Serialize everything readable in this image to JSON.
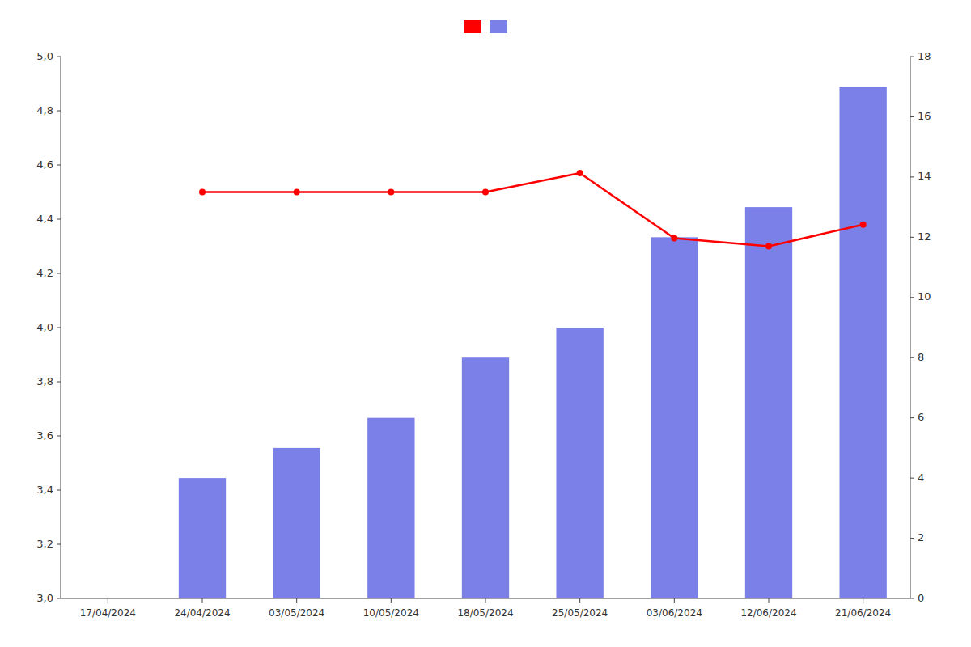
{
  "chart_data": {
    "type": "bar",
    "categories": [
      "17/04/2024",
      "24/04/2024",
      "03/05/2024",
      "10/05/2024",
      "18/05/2024",
      "25/05/2024",
      "03/06/2024",
      "12/06/2024",
      "21/06/2024"
    ],
    "series": [
      {
        "type": "line",
        "color": "#ff0000",
        "marker": "circle",
        "values": [
          null,
          4.5,
          4.5,
          4.5,
          4.5,
          4.57,
          4.33,
          4.3,
          4.38
        ]
      },
      {
        "type": "bar",
        "color": "#7b7fe8",
        "axis": "y2",
        "values": [
          0,
          4,
          5,
          6,
          8,
          9,
          12,
          13,
          17
        ]
      }
    ],
    "ylim": [
      3.0,
      5.0
    ],
    "yticks": [
      {
        "value": 3.0,
        "label": "3,0"
      },
      {
        "value": 3.2,
        "label": "3,2"
      },
      {
        "value": 3.4,
        "label": "3,4"
      },
      {
        "value": 3.6,
        "label": "3,6"
      },
      {
        "value": 3.8,
        "label": "3,8"
      },
      {
        "value": 4.0,
        "label": "4,0"
      },
      {
        "value": 4.2,
        "label": "4,2"
      },
      {
        "value": 4.4,
        "label": "4,4"
      },
      {
        "value": 4.6,
        "label": "4,6"
      },
      {
        "value": 4.8,
        "label": "4,8"
      },
      {
        "value": 5.0,
        "label": "5,0"
      }
    ],
    "y2lim": [
      0,
      18
    ],
    "y2ticks": [
      0,
      2,
      4,
      6,
      8,
      10,
      12,
      14,
      16,
      18
    ],
    "grid": false,
    "legend": "top"
  }
}
